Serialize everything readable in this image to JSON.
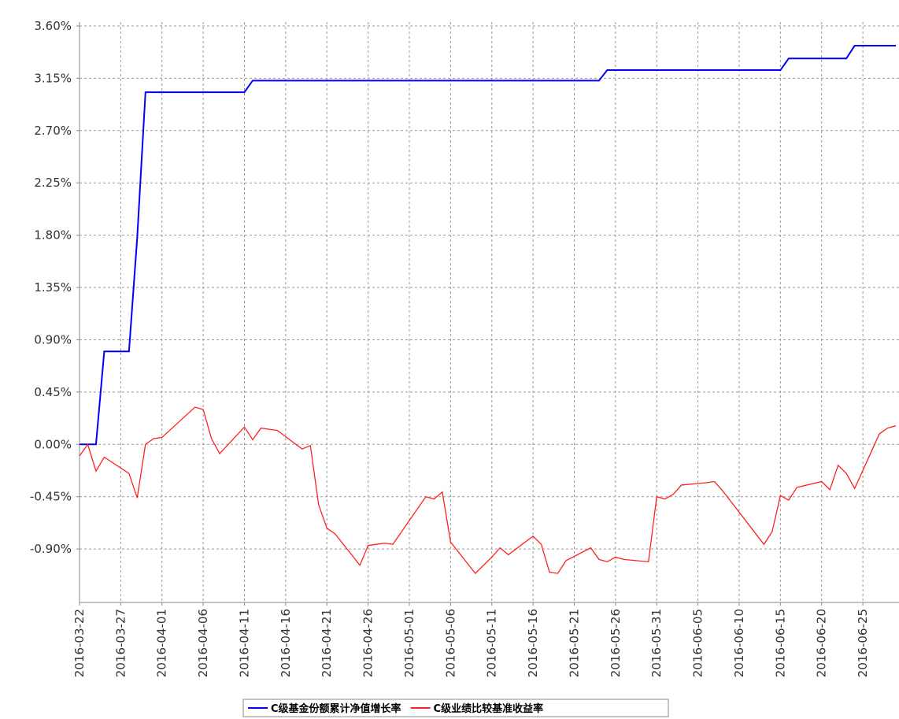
{
  "chart_data": {
    "type": "line",
    "x": [
      "2016-03-22",
      "2016-03-23",
      "2016-03-24",
      "2016-03-25",
      "2016-03-28",
      "2016-03-29",
      "2016-03-30",
      "2016-03-31",
      "2016-04-01",
      "2016-04-05",
      "2016-04-06",
      "2016-04-07",
      "2016-04-08",
      "2016-04-11",
      "2016-04-12",
      "2016-04-13",
      "2016-04-14",
      "2016-04-15",
      "2016-04-18",
      "2016-04-19",
      "2016-04-20",
      "2016-04-21",
      "2016-04-22",
      "2016-04-25",
      "2016-04-26",
      "2016-04-27",
      "2016-04-28",
      "2016-04-29",
      "2016-05-03",
      "2016-05-04",
      "2016-05-05",
      "2016-05-06",
      "2016-05-09",
      "2016-05-10",
      "2016-05-11",
      "2016-05-12",
      "2016-05-13",
      "2016-05-16",
      "2016-05-17",
      "2016-05-18",
      "2016-05-19",
      "2016-05-20",
      "2016-05-23",
      "2016-05-24",
      "2016-05-25",
      "2016-05-26",
      "2016-05-27",
      "2016-05-30",
      "2016-05-31",
      "2016-06-01",
      "2016-06-02",
      "2016-06-03",
      "2016-06-06",
      "2016-06-07",
      "2016-06-08",
      "2016-06-13",
      "2016-06-14",
      "2016-06-15",
      "2016-06-16",
      "2016-06-17",
      "2016-06-20",
      "2016-06-21",
      "2016-06-22",
      "2016-06-23",
      "2016-06-24",
      "2016-06-27",
      "2016-06-28",
      "2016-06-29"
    ],
    "series": [
      {
        "name": "C级基金份额累计净值增长率",
        "color": "#0000ff",
        "values": [
          0,
          0,
          0,
          0.8,
          0.8,
          1.78,
          3.03,
          3.03,
          3.03,
          3.03,
          3.03,
          3.03,
          3.03,
          3.03,
          3.13,
          3.13,
          3.13,
          3.13,
          3.13,
          3.13,
          3.13,
          3.13,
          3.13,
          3.13,
          3.13,
          3.13,
          3.13,
          3.13,
          3.13,
          3.13,
          3.13,
          3.13,
          3.13,
          3.13,
          3.13,
          3.13,
          3.13,
          3.13,
          3.13,
          3.13,
          3.13,
          3.13,
          3.13,
          3.13,
          3.22,
          3.22,
          3.22,
          3.22,
          3.22,
          3.22,
          3.22,
          3.22,
          3.22,
          3.22,
          3.22,
          3.22,
          3.22,
          3.22,
          3.32,
          3.32,
          3.32,
          3.32,
          3.32,
          3.32,
          3.43,
          3.43,
          3.43,
          3.43
        ]
      },
      {
        "name": "C级业绩比较基准收益率",
        "color": "#ff2020",
        "values": [
          -0.1,
          0.0,
          -0.23,
          -0.11,
          -0.25,
          -0.46,
          0.0,
          0.05,
          0.06,
          0.32,
          0.3,
          0.05,
          -0.08,
          0.15,
          0.04,
          0.14,
          0.13,
          0.12,
          -0.04,
          -0.01,
          -0.52,
          -0.72,
          -0.77,
          -1.04,
          -0.87,
          -0.86,
          -0.85,
          -0.86,
          -0.45,
          -0.47,
          -0.41,
          -0.84,
          -1.11,
          -1.04,
          -0.97,
          -0.89,
          -0.95,
          -0.79,
          -0.86,
          -1.1,
          -1.11,
          -1.0,
          -0.89,
          -0.99,
          -1.01,
          -0.97,
          -0.99,
          -1.01,
          -0.45,
          -0.47,
          -0.43,
          -0.35,
          -0.33,
          -0.32,
          -0.4,
          -0.86,
          -0.75,
          -0.44,
          -0.48,
          -0.37,
          -0.32,
          -0.39,
          -0.18,
          -0.25,
          -0.38,
          0.09,
          0.14,
          0.16
        ]
      }
    ],
    "xlim": [
      "2016-03-22",
      "2016-06-29"
    ],
    "xticks": [
      "2016-03-22",
      "2016-03-27",
      "2016-04-01",
      "2016-04-06",
      "2016-04-11",
      "2016-04-16",
      "2016-04-21",
      "2016-04-26",
      "2016-05-01",
      "2016-05-06",
      "2016-05-11",
      "2016-05-16",
      "2016-05-21",
      "2016-05-26",
      "2016-05-31",
      "2016-06-05",
      "2016-06-10",
      "2016-06-15",
      "2016-06-20",
      "2016-06-25"
    ],
    "ylim": [
      -1.36,
      3.62
    ],
    "yticks": [
      {
        "value": -0.9,
        "label": "-0.90%"
      },
      {
        "value": -0.45,
        "label": "-0.45%"
      },
      {
        "value": 0,
        "label": "0.00%"
      },
      {
        "value": 0.45,
        "label": "0.45%"
      },
      {
        "value": 0.9,
        "label": "0.90%"
      },
      {
        "value": 1.35,
        "label": "1.35%"
      },
      {
        "value": 1.8,
        "label": "1.80%"
      },
      {
        "value": 2.25,
        "label": "2.25%"
      },
      {
        "value": 2.7,
        "label": "2.70%"
      },
      {
        "value": 3.15,
        "label": "3.15%"
      },
      {
        "value": 3.6,
        "label": "3.60%"
      }
    ],
    "grid": true
  }
}
